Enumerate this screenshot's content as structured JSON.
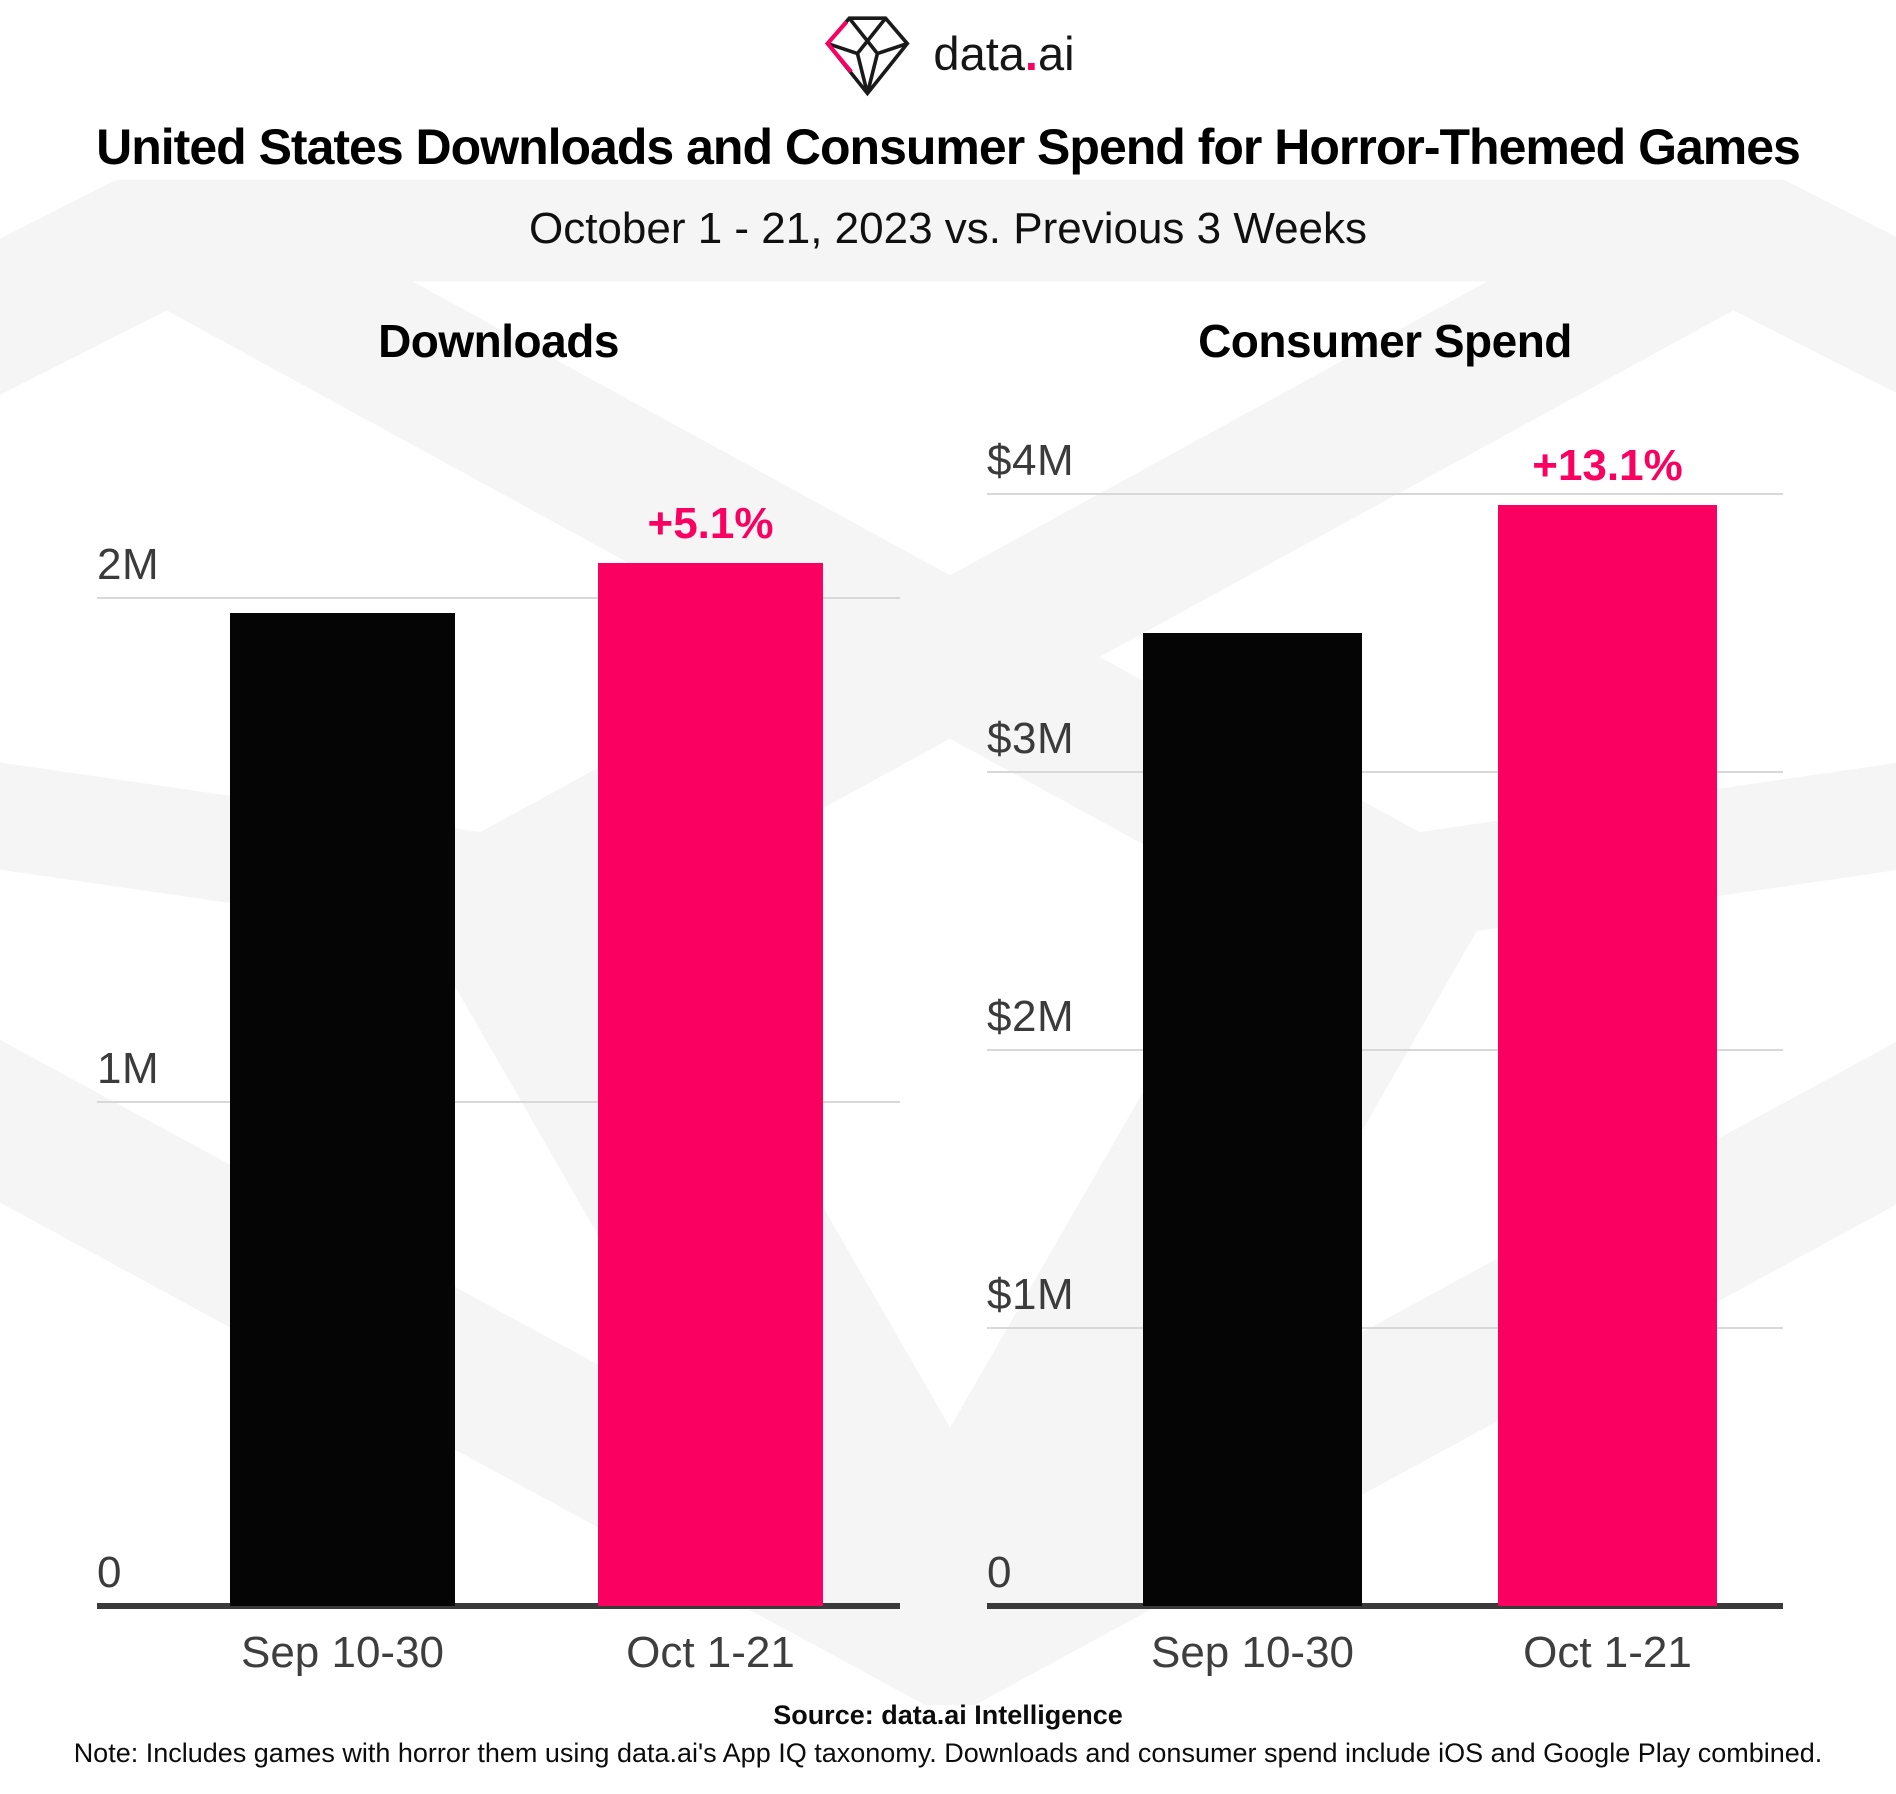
{
  "logo": {
    "text_data": "data",
    "dot": ".",
    "text_ai": "ai"
  },
  "header": {
    "title": "United States Downloads and Consumer Spend for Horror-Themed Games",
    "subtitle": "October 1 - 21, 2023 vs. Previous 3 Weeks"
  },
  "colors": {
    "bar_previous": "#050505",
    "bar_current": "#fa0161",
    "accent_pink": "#fa0161",
    "gridline": "#d8d8d8",
    "axis": "#3a3a3a",
    "tick_label": "#3b3b3b",
    "watermark": "#f5f5f5"
  },
  "chart_data": [
    {
      "type": "bar",
      "title": "Downloads",
      "categories": [
        "Sep 10-30",
        "Oct 1-21"
      ],
      "values": [
        1970000,
        2070000
      ],
      "change_label": "+5.1%",
      "ylabel": "",
      "ylim": [
        0,
        2333000
      ],
      "grid": true,
      "y_ticks": [
        {
          "label": "2M",
          "value": 2000000
        },
        {
          "label": "1M",
          "value": 1000000
        },
        {
          "label": "0",
          "value": 0
        }
      ]
    },
    {
      "type": "bar",
      "title": "Consumer Spend",
      "categories": [
        "Sep 10-30",
        "Oct 1-21"
      ],
      "values": [
        3500000,
        3960000
      ],
      "change_label": "+13.1%",
      "ylabel": "",
      "ylim": [
        0,
        4230000
      ],
      "grid": true,
      "y_ticks": [
        {
          "label": "$4M",
          "value": 4000000
        },
        {
          "label": "$3M",
          "value": 3000000
        },
        {
          "label": "$2M",
          "value": 2000000
        },
        {
          "label": "$1M",
          "value": 1000000
        },
        {
          "label": "0",
          "value": 0
        }
      ]
    }
  ],
  "footer": {
    "source": "Source: data.ai Intelligence",
    "note": "Note:  Includes games with horror them using data.ai's App IQ taxonomy. Downloads and consumer spend include iOS and Google Play combined."
  }
}
